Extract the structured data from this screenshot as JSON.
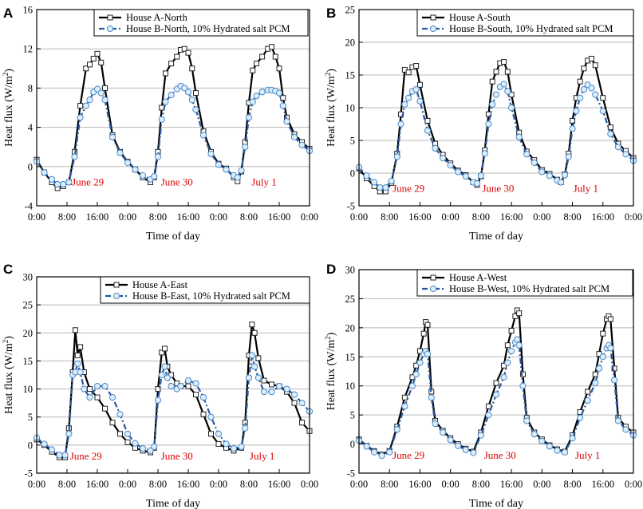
{
  "chart_data": [
    {
      "type": "line",
      "panel_label": "A",
      "xlabel": "Time of day",
      "ylabel_main": "Heat flux (W/m",
      "ylabel_sup": "2",
      "ylabel_close": ")",
      "ylim": [
        -4,
        16
      ],
      "yticks": [
        -4,
        0,
        4,
        8,
        12,
        16
      ],
      "yticklabels": [
        "-4",
        "0",
        "4",
        "8",
        "12",
        "16"
      ],
      "xlim": [
        0,
        72
      ],
      "xticks": [
        0,
        8,
        16,
        24,
        32,
        40,
        48,
        56,
        64,
        72
      ],
      "xticklabels": [
        "0:00",
        "8:00",
        "16:00",
        "0:00",
        "8:00",
        "16:00",
        "0:00",
        "8:00",
        "16:00",
        "0:00"
      ],
      "day_labels": [
        {
          "text": "June 29",
          "x": 13.5,
          "y": -1.6
        },
        {
          "text": "June 30",
          "x": 37,
          "y": -1.6
        },
        {
          "text": "July 1",
          "x": 60,
          "y": -1.6
        }
      ],
      "series": [
        {
          "name": "House A-North",
          "x": [
            0,
            2,
            4,
            5.5,
            7,
            8.5,
            10,
            11.5,
            13,
            14,
            15,
            16,
            17,
            18,
            20,
            22,
            24,
            26,
            28,
            30,
            31,
            32,
            33,
            34,
            35.5,
            37,
            38,
            39,
            40,
            41,
            42,
            44,
            46,
            48,
            50,
            52,
            53,
            54,
            55,
            56,
            57,
            58,
            59.5,
            61,
            62,
            63,
            64,
            65,
            66,
            68,
            70,
            72
          ],
          "y": [
            0.7,
            -0.6,
            -1.6,
            -2.2,
            -2.0,
            -1.6,
            1.5,
            6.2,
            10.0,
            10.4,
            11.0,
            11.5,
            10.6,
            8.0,
            3.2,
            1.5,
            0.5,
            -0.3,
            -1.1,
            -1.6,
            -1.1,
            1.5,
            6.0,
            9.5,
            10.5,
            11.2,
            11.9,
            12.0,
            11.6,
            10.0,
            7.5,
            3.6,
            1.5,
            0.3,
            -0.2,
            -1.1,
            -1.5,
            -0.5,
            2.5,
            6.5,
            9.8,
            10.5,
            11.2,
            12.0,
            12.2,
            11.2,
            10.0,
            7.0,
            5.0,
            3.3,
            2.5,
            1.8
          ]
        },
        {
          "name": "House B-North, 10% Hydrated salt PCM",
          "x": [
            0,
            2,
            4,
            5.5,
            7,
            8.5,
            10,
            11.5,
            13,
            14,
            15,
            16,
            17,
            18,
            20,
            22,
            24,
            26,
            28,
            30,
            31,
            32,
            33,
            34,
            35.5,
            37,
            38,
            39,
            40,
            41,
            42,
            44,
            46,
            48,
            50,
            52,
            53,
            54,
            55,
            56,
            57,
            58,
            59.5,
            61,
            62,
            63,
            64,
            65,
            66,
            68,
            70,
            72
          ],
          "y": [
            0.5,
            -0.6,
            -1.3,
            -1.8,
            -1.8,
            -1.6,
            1.0,
            5.0,
            6.2,
            6.8,
            7.6,
            7.9,
            7.5,
            6.8,
            3.0,
            1.4,
            0.4,
            -0.3,
            -0.9,
            -1.3,
            -1.0,
            1.0,
            4.8,
            6.6,
            7.3,
            7.9,
            8.2,
            8.0,
            7.6,
            6.8,
            5.8,
            3.2,
            1.3,
            0.2,
            -0.3,
            -0.9,
            -1.1,
            -0.4,
            2.0,
            5.0,
            6.6,
            7.2,
            7.6,
            7.8,
            7.8,
            7.7,
            7.5,
            6.2,
            4.6,
            3.0,
            2.2,
            1.6
          ]
        }
      ]
    },
    {
      "type": "line",
      "panel_label": "B",
      "xlabel": "Time of day",
      "ylabel_main": "Heat flux (W/m",
      "ylabel_sup": "2",
      "ylabel_close": ")",
      "ylim": [
        -5,
        25
      ],
      "yticks": [
        -5,
        0,
        5,
        10,
        15,
        20,
        25
      ],
      "yticklabels": [
        "-5",
        "0",
        "5",
        "10",
        "15",
        "20",
        "25"
      ],
      "xlim": [
        0,
        72
      ],
      "xticks": [
        0,
        8,
        16,
        24,
        32,
        40,
        48,
        56,
        64,
        72
      ],
      "xticklabels": [
        "0:00",
        "8:00",
        "16:00",
        "0:00",
        "8:00",
        "16:00",
        "0:00",
        "8:00",
        "16:00",
        "0:00"
      ],
      "day_labels": [
        {
          "text": "June 29",
          "x": 13,
          "y": -2.4
        },
        {
          "text": "June 30",
          "x": 36.5,
          "y": -2.4
        },
        {
          "text": "July 1",
          "x": 59.5,
          "y": -2.4
        }
      ],
      "series": [
        {
          "name": "House A-South",
          "x": [
            0,
            2,
            4,
            5.5,
            7,
            8.5,
            10,
            11,
            12,
            13,
            14,
            15,
            16,
            18,
            20,
            22,
            24,
            26,
            28,
            30,
            31,
            32,
            33,
            34,
            35,
            36,
            37,
            38,
            39,
            40,
            42,
            44,
            46,
            48,
            50,
            52,
            53,
            54,
            55,
            56,
            57,
            58,
            59,
            60,
            61,
            62,
            64,
            66,
            68,
            70,
            72
          ],
          "y": [
            0.7,
            -0.8,
            -2.0,
            -2.8,
            -2.8,
            -1.5,
            3.0,
            9.0,
            15.8,
            15.4,
            16.2,
            16.4,
            13.5,
            8.0,
            4.5,
            2.8,
            1.5,
            0.4,
            -0.3,
            -1.4,
            -1.8,
            -0.5,
            3.5,
            9.0,
            14.0,
            15.5,
            16.8,
            17.0,
            15.5,
            12.0,
            6.2,
            3.3,
            2.0,
            0.5,
            -0.1,
            -1.0,
            -1.4,
            -0.2,
            3.0,
            8.0,
            11.5,
            14.0,
            16.0,
            17.2,
            17.5,
            16.5,
            11.5,
            7.0,
            4.5,
            3.4,
            2.3
          ]
        },
        {
          "name": "House B-South, 10% Hydrated salt PCM",
          "x": [
            0,
            2,
            4,
            5.5,
            7,
            8.5,
            10,
            11,
            12,
            13,
            14,
            15,
            16,
            18,
            20,
            22,
            24,
            26,
            28,
            30,
            31,
            32,
            33,
            34,
            35,
            36,
            37,
            38,
            39,
            40,
            42,
            44,
            46,
            48,
            50,
            52,
            53,
            54,
            55,
            56,
            57,
            58,
            59,
            60,
            61,
            62,
            64,
            66,
            68,
            70,
            72
          ],
          "y": [
            0.9,
            -0.4,
            -1.4,
            -2.2,
            -2.2,
            -1.2,
            2.5,
            7.5,
            10.5,
            11.5,
            12.5,
            12.8,
            11.0,
            6.5,
            3.8,
            2.3,
            1.2,
            0.2,
            -0.5,
            -1.4,
            -1.6,
            -0.4,
            3.0,
            7.5,
            10.5,
            12.0,
            13.2,
            13.6,
            12.5,
            10.0,
            5.5,
            2.9,
            1.6,
            0.2,
            -0.4,
            -1.1,
            -1.4,
            -0.3,
            2.5,
            6.8,
            9.5,
            11.5,
            12.8,
            13.5,
            13.0,
            12.0,
            9.5,
            6.0,
            4.0,
            2.9,
            1.9
          ]
        }
      ]
    },
    {
      "type": "line",
      "panel_label": "C",
      "xlabel": "Time of day",
      "ylabel_main": "Heat flux (W/m",
      "ylabel_sup": "2",
      "ylabel_close": ")",
      "ylim": [
        -5,
        30
      ],
      "yticks": [
        -5,
        0,
        5,
        10,
        15,
        20,
        25,
        30
      ],
      "yticklabels": [
        "-5",
        "0",
        "5",
        "10",
        "15",
        "20",
        "25",
        "30"
      ],
      "xlim": [
        0,
        72
      ],
      "xticks": [
        0,
        8,
        16,
        24,
        32,
        40,
        48,
        56,
        64,
        72
      ],
      "xticklabels": [
        "0:00",
        "8:00",
        "16:00",
        "0:00",
        "8:00",
        "16:00",
        "0:00",
        "8:00",
        "16:00",
        "0:00"
      ],
      "day_labels": [
        {
          "text": "June 29",
          "x": 13,
          "y": -2.0
        },
        {
          "text": "June 30",
          "x": 37,
          "y": -2.0
        },
        {
          "text": "July 1",
          "x": 59.5,
          "y": -2.0
        }
      ],
      "series": [
        {
          "name": "House A-East",
          "x": [
            0,
            2,
            4,
            6,
            7.5,
            8.5,
            9.5,
            10.2,
            10.8,
            11.5,
            12.5,
            14,
            16,
            18,
            20,
            22,
            24,
            26,
            28,
            30,
            31,
            32,
            33,
            33.8,
            34.5,
            35.5,
            37,
            38,
            40,
            42,
            44,
            46,
            48,
            50,
            52,
            54,
            55,
            56,
            56.8,
            57.5,
            58.5,
            60,
            62,
            64,
            66,
            68,
            70,
            72
          ],
          "y": [
            1.0,
            0.0,
            -1.2,
            -2.2,
            -2.2,
            3.0,
            13.0,
            20.5,
            16.0,
            17.5,
            13.0,
            10.0,
            8.5,
            6.5,
            4.0,
            2.0,
            0.5,
            -0.5,
            -1.0,
            -1.3,
            -0.5,
            10.0,
            16.5,
            17.2,
            14.0,
            12.5,
            11.0,
            10.5,
            10.5,
            9.0,
            5.5,
            2.0,
            0.2,
            -0.5,
            -1.0,
            -0.5,
            4.0,
            16.0,
            21.5,
            20.0,
            15.5,
            11.5,
            10.8,
            10.5,
            9.5,
            7.5,
            4.0,
            2.5
          ]
        },
        {
          "name": "House B-East, 10% Hydrated salt PCM",
          "x": [
            0,
            2,
            4,
            6,
            7.5,
            8.5,
            9.5,
            10.2,
            10.8,
            11.5,
            12.5,
            14,
            16,
            18,
            20,
            22,
            24,
            26,
            28,
            30,
            31,
            32,
            33,
            33.8,
            34.5,
            35.5,
            37,
            38,
            40,
            42,
            44,
            46,
            48,
            50,
            52,
            54,
            55,
            56,
            56.8,
            57.5,
            58.5,
            60,
            62,
            64,
            66,
            68,
            70,
            72
          ],
          "y": [
            1.3,
            0.2,
            -0.8,
            -1.8,
            -1.8,
            2.0,
            12.5,
            13.0,
            14.5,
            13.0,
            10.0,
            8.5,
            10.5,
            10.5,
            8.5,
            5.5,
            2.0,
            0.3,
            -0.6,
            -1.0,
            -0.3,
            8.0,
            12.5,
            14.0,
            12.0,
            10.5,
            10.0,
            10.5,
            11.5,
            11.0,
            8.5,
            5.0,
            2.0,
            0.2,
            -0.6,
            -0.3,
            3.0,
            12.0,
            16.0,
            14.0,
            12.0,
            9.5,
            9.5,
            10.5,
            10.0,
            9.0,
            7.5,
            6.0
          ]
        }
      ]
    },
    {
      "type": "line",
      "panel_label": "D",
      "xlabel": "Time of day",
      "ylabel_main": "Heat flux (W/m",
      "ylabel_sup": "2",
      "ylabel_close": ")",
      "ylim": [
        -5,
        30
      ],
      "yticks": [
        -5,
        0,
        5,
        10,
        15,
        20,
        25,
        30
      ],
      "yticklabels": [
        "-5",
        "0",
        "5",
        "10",
        "15",
        "20",
        "25",
        "30"
      ],
      "xlim": [
        0,
        72
      ],
      "xticks": [
        0,
        8,
        16,
        24,
        32,
        40,
        48,
        56,
        64,
        72
      ],
      "xticklabels": [
        "0:00",
        "8:00",
        "16:00",
        "0:00",
        "8:00",
        "16:00",
        "0:00",
        "8:00",
        "16:00",
        "0:00"
      ],
      "day_labels": [
        {
          "text": "June 29",
          "x": 13,
          "y": -2.0
        },
        {
          "text": "June 30",
          "x": 37,
          "y": -2.0
        },
        {
          "text": "July 1",
          "x": 60,
          "y": -2.0
        }
      ],
      "series": [
        {
          "name": "House A-West",
          "x": [
            0,
            2,
            4,
            6,
            8,
            10,
            12,
            14,
            15,
            16,
            17,
            17.5,
            18,
            19,
            20,
            22,
            24,
            26,
            28,
            30,
            32,
            34,
            36,
            38,
            39,
            40,
            41,
            41.5,
            42,
            43,
            44,
            46,
            48,
            50,
            52,
            54,
            56,
            58,
            60,
            62,
            63,
            64,
            65,
            65.5,
            66,
            67,
            68,
            70,
            72
          ],
          "y": [
            0.8,
            -0.3,
            -1.2,
            -1.8,
            -1.2,
            3.0,
            8.0,
            11.5,
            13.5,
            16.0,
            19.0,
            21.0,
            20.5,
            9.0,
            4.0,
            2.3,
            1.0,
            0.0,
            -0.8,
            -1.3,
            2.0,
            6.5,
            10.5,
            13.5,
            17.0,
            19.5,
            22.0,
            23.0,
            22.5,
            12.0,
            4.5,
            2.0,
            0.8,
            -0.2,
            -0.9,
            -1.3,
            1.5,
            5.5,
            9.0,
            12.0,
            15.5,
            19.0,
            21.5,
            22.0,
            21.5,
            13.0,
            4.5,
            3.0,
            2.0
          ]
        },
        {
          "name": "House B-West, 10% Hydrated salt PCM",
          "x": [
            0,
            2,
            4,
            6,
            8,
            10,
            12,
            14,
            15,
            16,
            17,
            17.5,
            18,
            19,
            20,
            22,
            24,
            26,
            28,
            30,
            32,
            34,
            36,
            38,
            39,
            40,
            41,
            41.5,
            42,
            43,
            44,
            46,
            48,
            50,
            52,
            54,
            56,
            58,
            60,
            62,
            63,
            64,
            65,
            65.5,
            66,
            67,
            68,
            70,
            72
          ],
          "y": [
            0.6,
            -0.4,
            -1.4,
            -2.0,
            -1.4,
            2.5,
            6.5,
            10.0,
            12.0,
            14.0,
            15.5,
            16.0,
            15.5,
            8.0,
            3.5,
            2.0,
            0.7,
            -0.3,
            -1.0,
            -1.5,
            1.5,
            5.0,
            8.5,
            11.5,
            14.0,
            16.0,
            17.5,
            18.0,
            17.0,
            10.0,
            4.0,
            1.7,
            0.5,
            -0.4,
            -1.1,
            -1.4,
            1.0,
            4.5,
            7.5,
            10.5,
            13.0,
            15.0,
            16.5,
            17.0,
            16.5,
            11.0,
            4.0,
            2.5,
            1.5
          ]
        }
      ]
    }
  ]
}
